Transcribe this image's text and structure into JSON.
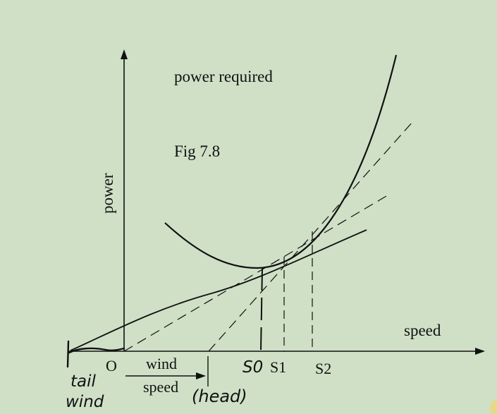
{
  "figure": {
    "curve_title": "power required",
    "fig_label": "Fig 7.8",
    "y_axis_label": "power",
    "x_axis_label": "speed",
    "origin_label": "O",
    "wind_label_line1": "wind",
    "wind_label_line2": "speed",
    "s0_label": "S0",
    "s1_label": "S1",
    "s2_label": "S2",
    "tail_label_line1": "tail",
    "tail_label_line2": "wind",
    "head_label": "(head)"
  },
  "colors": {
    "background": "#cfe0c6",
    "ink": "#111111"
  }
}
